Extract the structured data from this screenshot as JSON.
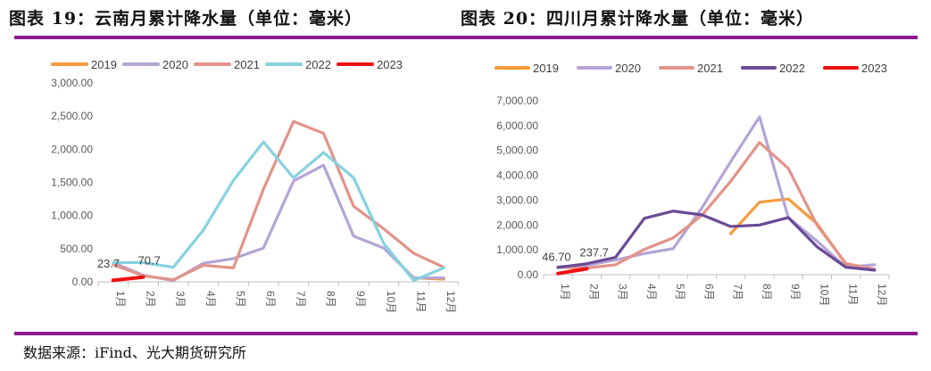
{
  "titles": {
    "left": "图表 19：云南月累计降水量（单位：毫米）",
    "right": "图表 20：四川月累计降水量（单位：毫米）"
  },
  "source": "数据来源：iFind、光大期货研究所",
  "colors": {
    "2019": "#f79a3b",
    "2020": "#b4a5d6",
    "2021": "#e3938a",
    "2022_left": "#86d2e0",
    "2022_right": "#6a4b96",
    "2023": "#ee1111",
    "rule": "#8b1a8b"
  },
  "chart_data": [
    {
      "type": "line",
      "title": "图表 19：云南月累计降水量（单位：毫米）",
      "categories": [
        "1月",
        "2月",
        "3月",
        "4月",
        "5月",
        "6月",
        "7月",
        "8月",
        "9月",
        "10月",
        "11月",
        "12月"
      ],
      "ylim": [
        0,
        3000
      ],
      "yticks": [
        "0.00",
        "500.00",
        "1,000.00",
        "1,500.00",
        "2,000.00",
        "2,500.00",
        "3,000.00"
      ],
      "legend": [
        "2019",
        "2020",
        "2021",
        "2022",
        "2023"
      ],
      "legend_position": "top",
      "series": [
        {
          "name": "2019",
          "color": "#f79a3b",
          "values": [
            null,
            null,
            null,
            null,
            null,
            null,
            null,
            null,
            null,
            null,
            60,
            40
          ]
        },
        {
          "name": "2020",
          "color": "#b4a5d6",
          "values": [
            290,
            100,
            20,
            280,
            350,
            510,
            1520,
            1760,
            690,
            510,
            60,
            60
          ]
        },
        {
          "name": "2021",
          "color": "#e3938a",
          "values": [
            260,
            90,
            30,
            250,
            210,
            1400,
            2420,
            2240,
            1140,
            800,
            430,
            220
          ]
        },
        {
          "name": "2022",
          "color": "#86d2e0",
          "values": [
            290,
            290,
            220,
            780,
            1530,
            2110,
            1570,
            1950,
            1570,
            580,
            20,
            210
          ]
        },
        {
          "name": "2023",
          "color": "#ee1111",
          "values": [
            23.7,
            70.7,
            null,
            null,
            null,
            null,
            null,
            null,
            null,
            null,
            null,
            null
          ]
        }
      ],
      "annotations": [
        "23.7",
        "70.7"
      ]
    },
    {
      "type": "line",
      "title": "图表 20：四川月累计降水量（单位：毫米）",
      "categories": [
        "1月",
        "2月",
        "3月",
        "4月",
        "5月",
        "6月",
        "7月",
        "8月",
        "9月",
        "10月",
        "11月",
        "12月"
      ],
      "ylim": [
        0,
        7000
      ],
      "yticks": [
        "0.00",
        "1,000.00",
        "2,000.00",
        "3,000.00",
        "4,000.00",
        "5,000.00",
        "6,000.00",
        "7,000.00"
      ],
      "legend": [
        "2019",
        "2020",
        "2021",
        "2022",
        "2023"
      ],
      "legend_position": "top",
      "series": [
        {
          "name": "2019",
          "color": "#f79a3b",
          "values": [
            null,
            null,
            null,
            null,
            null,
            null,
            1650,
            2920,
            3050,
            2050,
            420,
            210
          ]
        },
        {
          "name": "2020",
          "color": "#b4a5d6",
          "values": [
            320,
            380,
            590,
            850,
            1050,
            2690,
            4550,
            6350,
            2300,
            1350,
            300,
            400
          ]
        },
        {
          "name": "2021",
          "color": "#e3938a",
          "values": [
            300,
            270,
            400,
            1020,
            1480,
            2390,
            3760,
            5320,
            4280,
            1990,
            450,
            220
          ]
        },
        {
          "name": "2022",
          "color": "#6a4b96",
          "values": [
            290,
            440,
            700,
            2270,
            2560,
            2410,
            1940,
            2000,
            2300,
            1120,
            300,
            180
          ]
        },
        {
          "name": "2023",
          "color": "#ee1111",
          "values": [
            46.7,
            237.7,
            null,
            null,
            null,
            null,
            null,
            null,
            null,
            null,
            null,
            null
          ]
        }
      ],
      "annotations": [
        "46.70",
        "237.7"
      ]
    }
  ]
}
